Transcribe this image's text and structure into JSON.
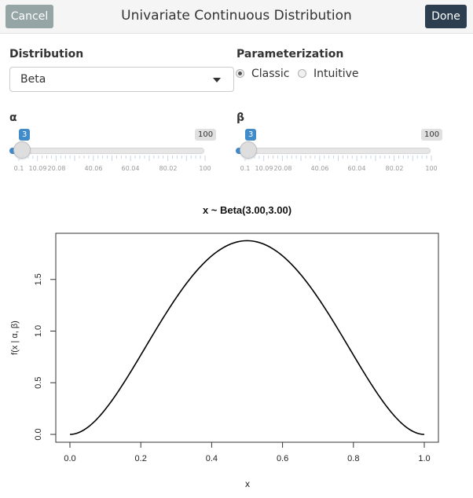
{
  "header": {
    "title": "Univariate Continuous Distribution",
    "cancel_label": "Cancel",
    "done_label": "Done"
  },
  "distribution": {
    "label": "Distribution",
    "selected": "Beta"
  },
  "parameterization": {
    "label": "Parameterization",
    "options": [
      "Classic",
      "Intuitive"
    ],
    "selected": "Classic"
  },
  "sliders": [
    {
      "label": "α",
      "value": "3",
      "max": "100",
      "tick_labels": [
        "0.1",
        "10.09",
        "20.08",
        "40.06",
        "60.04",
        "80.02",
        "100"
      ]
    },
    {
      "label": "β",
      "value": "3",
      "max": "100",
      "tick_labels": [
        "0.1",
        "10.09",
        "20.08",
        "40.06",
        "60.04",
        "80.02",
        "100"
      ]
    }
  ],
  "colors": {
    "accent": "#428bca",
    "done_button": "#2c3e50",
    "cancel_button": "#95a5a6"
  },
  "chart_data": {
    "type": "line",
    "title": "x ~ Beta(3.00,3.00)",
    "xlabel": "x",
    "ylabel": "f(x | α, β)",
    "xlim": [
      0,
      1
    ],
    "ylim": [
      0,
      1.875
    ],
    "x_ticks": [
      "0.0",
      "0.2",
      "0.4",
      "0.6",
      "0.8",
      "1.0"
    ],
    "y_ticks": [
      "0.0",
      "0.5",
      "1.0",
      "1.5"
    ],
    "distribution": {
      "name": "Beta",
      "alpha": 3,
      "beta": 3
    },
    "x": [
      0.0,
      0.1,
      0.2,
      0.3,
      0.4,
      0.5,
      0.6,
      0.7,
      0.8,
      0.9,
      1.0
    ],
    "y": [
      0.0,
      0.243,
      0.768,
      1.323,
      1.728,
      1.875,
      1.728,
      1.323,
      0.768,
      0.243,
      0.0
    ]
  }
}
